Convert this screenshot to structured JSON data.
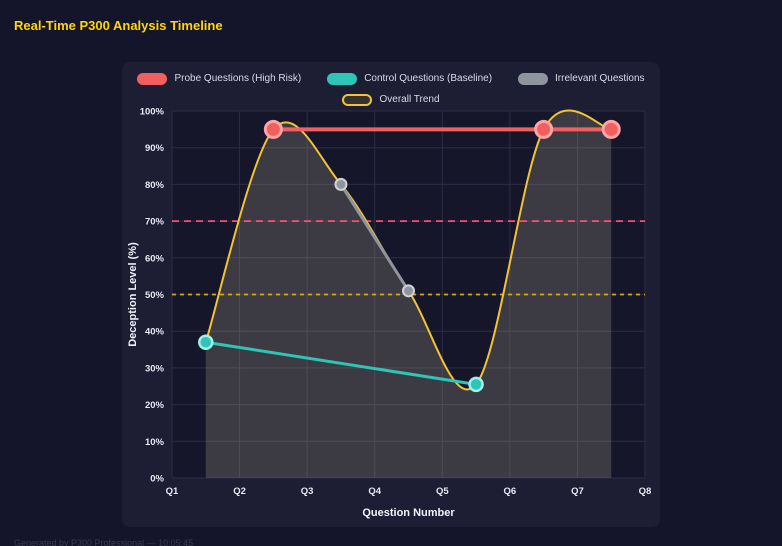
{
  "page": {
    "title": "Real-Time P300 Analysis Timeline",
    "footer": "Generated by P300 Professional — 10:05:45"
  },
  "chart_data": {
    "type": "line",
    "title": "Real-Time P300 Analysis Timeline",
    "xlabel": "Question Number",
    "ylabel": "Deception Level (%)",
    "x_ticks": [
      "Q1",
      "Q2",
      "Q3",
      "Q4",
      "Q5",
      "Q6",
      "Q7",
      "Q8"
    ],
    "x_tick_values": [
      1,
      2,
      3,
      4,
      5,
      6,
      7,
      8
    ],
    "x_range": [
      1,
      8
    ],
    "ylim": [
      0,
      100
    ],
    "y_ticks": [
      "0%",
      "10%",
      "20%",
      "30%",
      "40%",
      "50%",
      "60%",
      "70%",
      "80%",
      "90%",
      "100%"
    ],
    "y_tick_values": [
      0,
      10,
      20,
      30,
      40,
      50,
      60,
      70,
      80,
      90,
      100
    ],
    "grid": true,
    "legend_position": "top",
    "series": [
      {
        "name": "Probe Questions (High Risk)",
        "color": "#f25f5f",
        "marker_stroke": "#ffa3a3",
        "marker_stroke_width": 3,
        "marker_radius": 8,
        "line_width": 4,
        "legend_box": "fill",
        "points": [
          [
            2.5,
            95
          ],
          [
            6.5,
            95
          ],
          [
            7.5,
            95
          ]
        ]
      },
      {
        "name": "Control Questions (Baseline)",
        "color": "#2ec4b6",
        "marker_stroke": "#9ff0e8",
        "marker_stroke_width": 2.5,
        "marker_radius": 6.5,
        "line_width": 3,
        "legend_box": "fill",
        "points": [
          [
            1.5,
            37
          ],
          [
            5.5,
            25.5
          ]
        ]
      },
      {
        "name": "Irrelevant Questions",
        "color": "#8f959c",
        "marker_stroke": "#cfd4d9",
        "marker_stroke_width": 2,
        "marker_radius": 5.5,
        "line_width": 3,
        "legend_box": "fill",
        "points": [
          [
            3.5,
            80
          ],
          [
            4.5,
            51
          ]
        ]
      },
      {
        "name": "Overall Trend",
        "color": "#f2c335",
        "marker_radius": 0,
        "line_width": 2,
        "legend_box": "outline",
        "smooth": true,
        "area": true,
        "area_color": "rgba(235, 225, 180, 0.18)",
        "points": [
          [
            1.5,
            37
          ],
          [
            2.5,
            95
          ],
          [
            3.5,
            80
          ],
          [
            4.5,
            51
          ],
          [
            5.5,
            25.5
          ],
          [
            6.5,
            95
          ],
          [
            7.5,
            95
          ]
        ]
      }
    ],
    "thresholds": [
      {
        "value": 70,
        "color": "#ff4d6d",
        "dash": "7 5"
      },
      {
        "value": 50,
        "color": "#d4a900",
        "dash": "4 4"
      }
    ],
    "colors": {
      "page_bg": "#14142a",
      "panel_bg": "#1d1d34",
      "plot_bg": "#16162b",
      "grid": "#2c2c44",
      "tick_text": "#e8e8f2",
      "axis_title": "#f2f2f8",
      "legend_text": "#d9d9e6",
      "title": "#ffd60a"
    }
  }
}
